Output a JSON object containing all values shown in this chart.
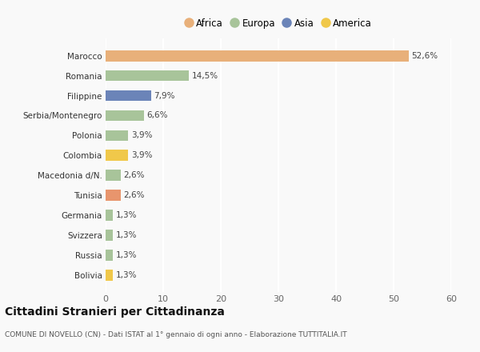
{
  "categories": [
    "Bolivia",
    "Russia",
    "Svizzera",
    "Germania",
    "Tunisia",
    "Macedonia d/N.",
    "Colombia",
    "Polonia",
    "Serbia/Montenegro",
    "Filippine",
    "Romania",
    "Marocco"
  ],
  "values": [
    1.3,
    1.3,
    1.3,
    1.3,
    2.6,
    2.6,
    3.9,
    3.9,
    6.6,
    7.9,
    14.5,
    52.6
  ],
  "colors": [
    "#F0C84A",
    "#A8C49A",
    "#A8C49A",
    "#A8C49A",
    "#E8956D",
    "#A8C49A",
    "#F0C84A",
    "#A8C49A",
    "#A8C49A",
    "#6B84B8",
    "#A8C49A",
    "#E8B07A"
  ],
  "labels": [
    "1,3%",
    "1,3%",
    "1,3%",
    "1,3%",
    "2,6%",
    "2,6%",
    "3,9%",
    "3,9%",
    "6,6%",
    "7,9%",
    "14,5%",
    "52,6%"
  ],
  "legend": [
    {
      "label": "Africa",
      "color": "#E8B07A"
    },
    {
      "label": "Europa",
      "color": "#A8C49A"
    },
    {
      "label": "Asia",
      "color": "#6B84B8"
    },
    {
      "label": "America",
      "color": "#F0C84A"
    }
  ],
  "xlim": [
    0,
    60
  ],
  "xticks": [
    0,
    10,
    20,
    30,
    40,
    50,
    60
  ],
  "title": "Cittadini Stranieri per Cittadinanza",
  "subtitle": "COMUNE DI NOVELLO (CN) - Dati ISTAT al 1° gennaio di ogni anno - Elaborazione TUTTITALIA.IT",
  "bg_color": "#f9f9f9",
  "bar_height": 0.55
}
